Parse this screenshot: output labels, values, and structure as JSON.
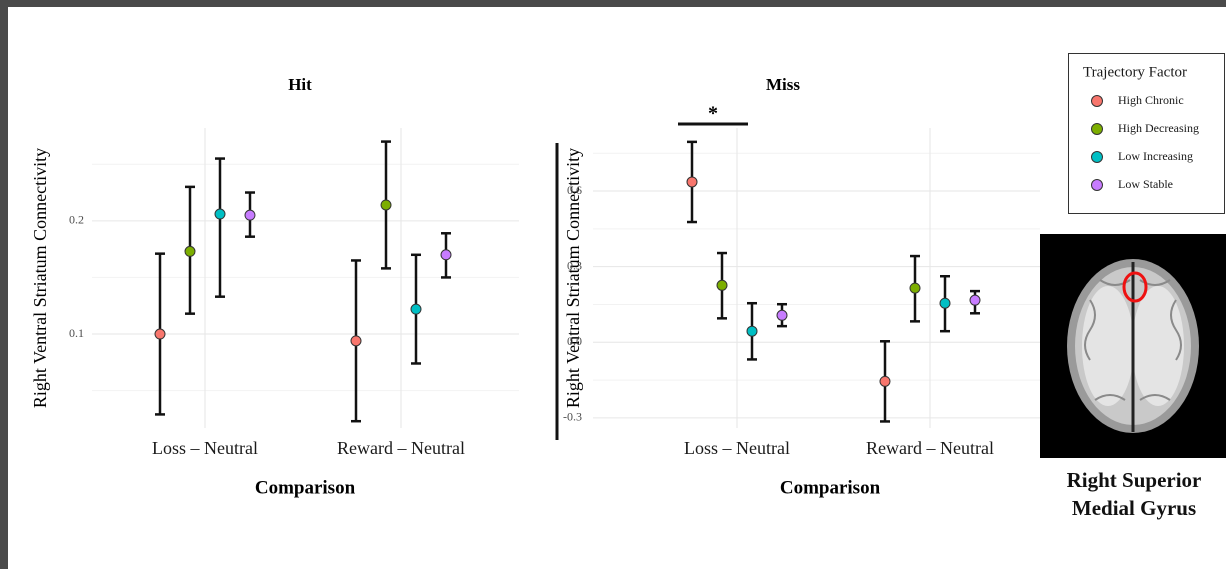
{
  "legend": {
    "title": "Trajectory Factor",
    "position": "right"
  },
  "figure": {
    "caption": "Right Superior Medial Gyrus"
  },
  "chart_data": [
    {
      "type": "errorbar",
      "title": "Hit",
      "x_label": "Comparison",
      "y_label": "Right Ventral Striatum Connectivity",
      "categories": [
        "Loss – Neutral",
        "Reward – Neutral"
      ],
      "ylim": [
        0.017,
        0.282
      ],
      "yticks": [
        0.1,
        0.2
      ],
      "minor_yticks": [
        0.05,
        0.15,
        0.25
      ],
      "grid": true,
      "series": [
        {
          "name": "High Chronic",
          "color": "#F8766D",
          "values": [
            0.1,
            0.094
          ],
          "lower": [
            0.029,
            0.023
          ],
          "upper": [
            0.171,
            0.165
          ]
        },
        {
          "name": "High Decreasing",
          "color": "#7CAE00",
          "values": [
            0.173,
            0.214
          ],
          "lower": [
            0.118,
            0.158
          ],
          "upper": [
            0.23,
            0.27
          ]
        },
        {
          "name": "Low Increasing",
          "color": "#00BFC4",
          "values": [
            0.206,
            0.122
          ],
          "lower": [
            0.133,
            0.074
          ],
          "upper": [
            0.255,
            0.17
          ]
        },
        {
          "name": "Low Stable",
          "color": "#C77CFF",
          "values": [
            0.205,
            0.17
          ],
          "lower": [
            0.186,
            0.15
          ],
          "upper": [
            0.225,
            0.189
          ]
        }
      ]
    },
    {
      "type": "errorbar",
      "title": "Miss",
      "x_label": "Comparison",
      "y_label": "Right Ventral Striatum Connectivity",
      "categories": [
        "Loss – Neutral",
        "Reward – Neutral"
      ],
      "ylim": [
        -0.34,
        0.85
      ],
      "yticks": [
        -0.3,
        {
          "value": 0,
          "label": "0.0"
        },
        0.3,
        0.6
      ],
      "minor_yticks": [
        -0.15,
        0.15,
        0.45,
        0.75
      ],
      "grid": true,
      "annotations": [
        {
          "text": "*"
        }
      ],
      "series": [
        {
          "name": "High Chronic",
          "color": "#F8766D",
          "values": [
            0.636,
            -0.155
          ],
          "lower": [
            0.477,
            -0.314
          ],
          "upper": [
            0.795,
            0.004
          ]
        },
        {
          "name": "High Decreasing",
          "color": "#7CAE00",
          "values": [
            0.226,
            0.215
          ],
          "lower": [
            0.095,
            0.083
          ],
          "upper": [
            0.354,
            0.342
          ]
        },
        {
          "name": "Low Increasing",
          "color": "#00BFC4",
          "values": [
            0.044,
            0.155
          ],
          "lower": [
            -0.068,
            0.044
          ],
          "upper": [
            0.155,
            0.262
          ]
        },
        {
          "name": "Low Stable",
          "color": "#C77CFF",
          "values": [
            0.107,
            0.167
          ],
          "lower": [
            0.064,
            0.115
          ],
          "upper": [
            0.151,
            0.203
          ]
        }
      ]
    }
  ]
}
